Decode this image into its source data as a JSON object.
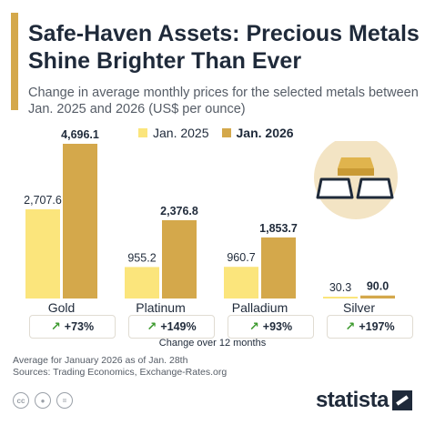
{
  "title": "Safe-Haven Assets: Precious Metals Shine Brighter Than Ever",
  "subtitle": "Change in average monthly prices for the selected metals between Jan. 2025 and 2026 (US$ per ounce)",
  "colors": {
    "series_2025": "#fbe57c",
    "series_2026": "#d4a84b",
    "accent": "#d4a84b",
    "arrow": "#3c9a2e"
  },
  "chart_data": {
    "type": "bar",
    "categories": [
      "Gold",
      "Platinum",
      "Palladium",
      "Silver"
    ],
    "series": [
      {
        "name": "Jan. 2025",
        "values": [
          2707.6,
          955.2,
          960.7,
          30.3
        ],
        "labels": [
          "2,707.6",
          "955.2",
          "960.7",
          "30.3"
        ]
      },
      {
        "name": "Jan. 2026",
        "values": [
          4696.1,
          2376.8,
          1853.7,
          90.0
        ],
        "labels": [
          "4,696.1",
          "2,376.8",
          "1,853.7",
          "90.0"
        ]
      }
    ],
    "title": "Safe-Haven Assets: Precious Metals Shine Brighter Than Ever",
    "xlabel": "",
    "ylabel": "",
    "ylim": [
      0,
      4696.1
    ],
    "grid": false,
    "legend": "top"
  },
  "changes": [
    "+73%",
    "+149%",
    "+93%",
    "+197%"
  ],
  "change_caption": "Change over 12 months",
  "footnote": [
    "Average for January 2026 as of Jan. 28th",
    "Sources: Trading Economics, Exchange-Rates.org"
  ],
  "icons": {
    "arrow": "up-right-arrow-icon",
    "illustration": "gold-bars-icon",
    "license": [
      "cc-icon",
      "by-icon",
      "nd-icon"
    ]
  },
  "logo": "statista"
}
